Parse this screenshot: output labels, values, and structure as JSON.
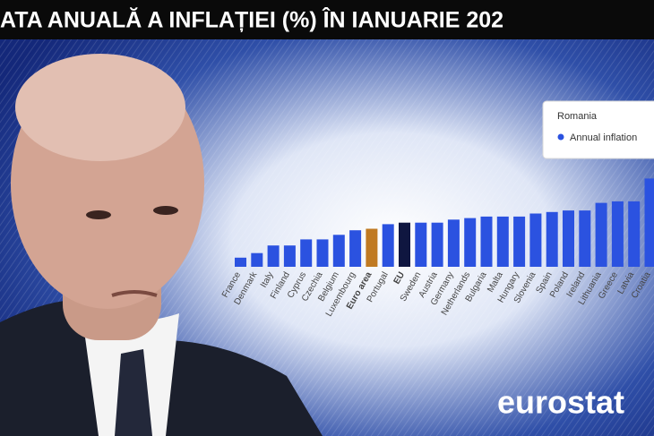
{
  "chart_data": {
    "type": "bar",
    "title": "ATA ANUALĂ A INFLAȚIEI (%) ÎN IANUARIE 202",
    "tooltip_title": "Romania",
    "source": "eurostat",
    "categories": [
      "France",
      "Denmark",
      "Italy",
      "Finland",
      "Cyprus",
      "Czechia",
      "Belgium",
      "Luxembourg",
      "Euro area",
      "Portugal",
      "EU",
      "Sweden",
      "Austria",
      "Germany",
      "Netherlands",
      "Bulgaria",
      "Malta",
      "Hungary",
      "Slovenia",
      "Spain",
      "Poland",
      "Ireland",
      "Lithuania",
      "Greece",
      "Latvia",
      "Croatia"
    ],
    "series": [
      {
        "name": "Annual inflation",
        "color": "#2b52e0",
        "values": [
          0.6,
          0.9,
          1.4,
          1.4,
          1.8,
          1.8,
          2.1,
          2.4,
          2.5,
          2.8,
          2.9,
          2.9,
          2.9,
          3.1,
          3.2,
          3.3,
          3.3,
          3.3,
          3.5,
          3.6,
          3.7,
          3.7,
          4.2,
          4.3,
          4.3,
          5.8
        ]
      }
    ],
    "colors": [
      "#2b52e0",
      "#2b52e0",
      "#2b52e0",
      "#2b52e0",
      "#2b52e0",
      "#2b52e0",
      "#2b52e0",
      "#2b52e0",
      "#c07a22",
      "#2b52e0",
      "#0f1640",
      "#2b52e0",
      "#2b52e0",
      "#2b52e0",
      "#2b52e0",
      "#2b52e0",
      "#2b52e0",
      "#2b52e0",
      "#2b52e0",
      "#2b52e0",
      "#2b52e0",
      "#2b52e0",
      "#2b52e0",
      "#2b52e0",
      "#2b52e0",
      "#2b52e0"
    ],
    "bold_categories": [
      "Euro area",
      "EU"
    ]
  }
}
